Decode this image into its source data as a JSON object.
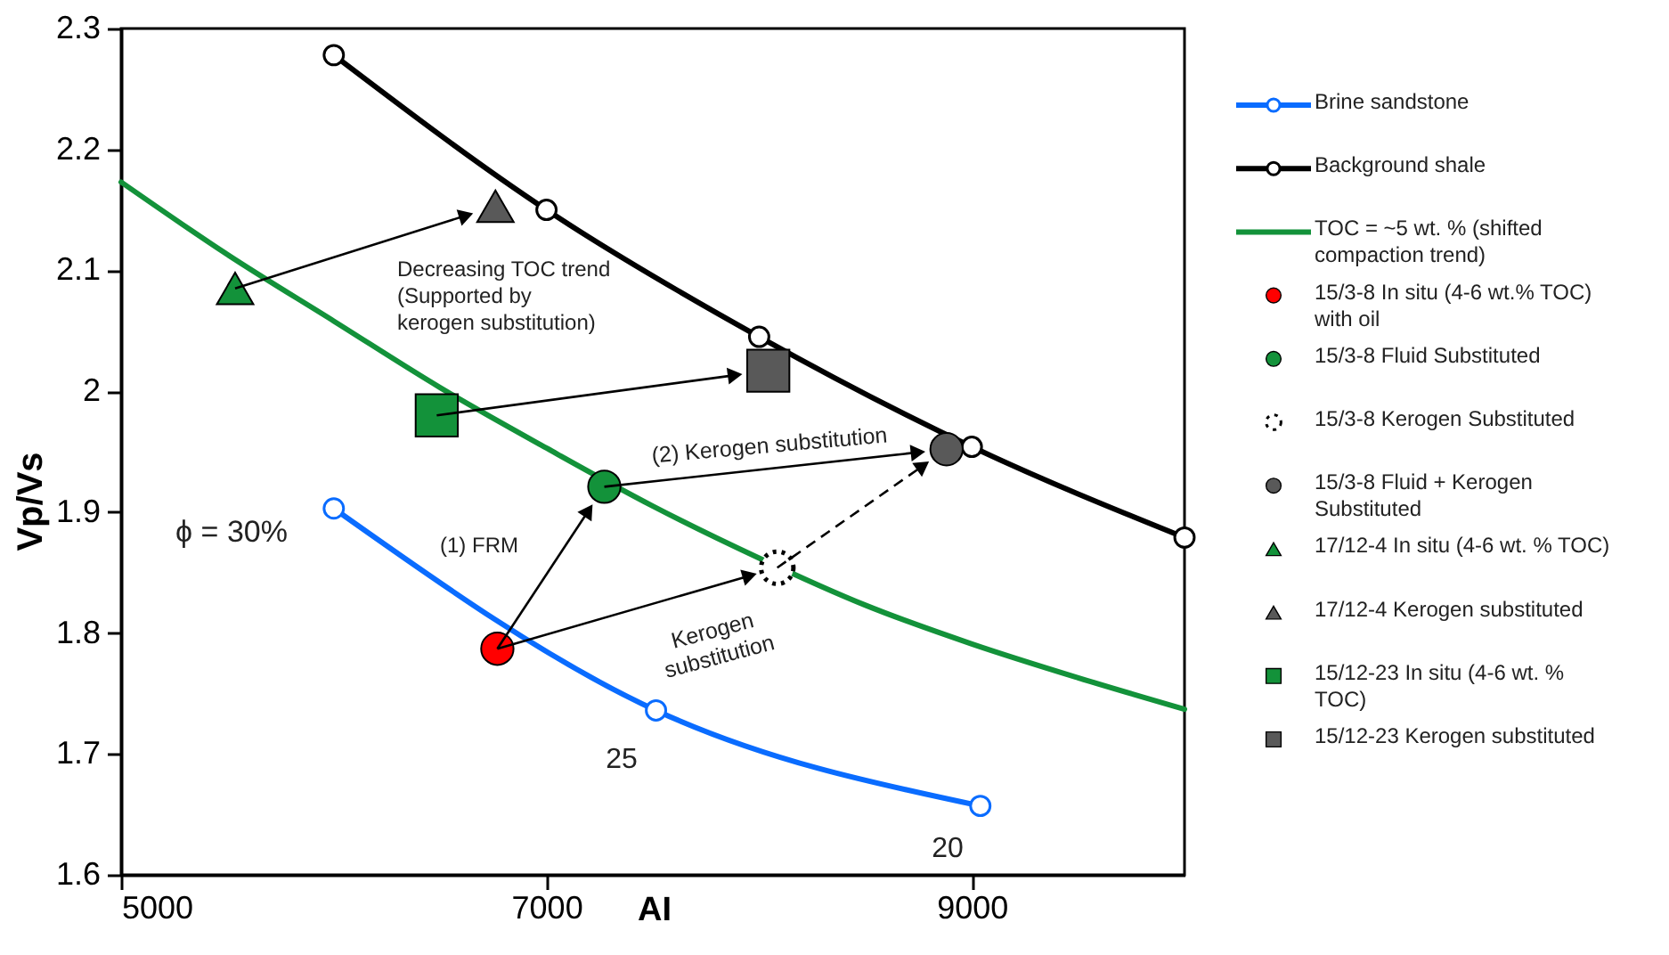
{
  "chart_data": {
    "type": "scatter",
    "xlabel": "AI",
    "ylabel": "Vp/Vs",
    "xlim": [
      5000,
      10000
    ],
    "xticks": [
      5000,
      7000,
      9000
    ],
    "ylim": [
      1.6,
      2.3
    ],
    "yticks": [
      1.6,
      1.7,
      1.8,
      1.9,
      2.0,
      2.1,
      2.2,
      2.3
    ],
    "grid": false,
    "legend": "right",
    "series": [
      {
        "name": "Brine sandstone",
        "type": "line",
        "marker": "circle",
        "color": "#0a6cff",
        "x": [
          6000,
          7515,
          9040
        ],
        "values": [
          1.903,
          1.736,
          1.657
        ]
      },
      {
        "name": "Background shale",
        "type": "line",
        "marker": "circle",
        "color": "#000000",
        "x": [
          6000,
          7000,
          8000,
          9000,
          10000
        ],
        "values": [
          2.278,
          2.15,
          2.045,
          1.954,
          1.879
        ]
      },
      {
        "name": "TOC = ~5 wt. % (shifted compaction trend)",
        "type": "line",
        "marker": "none",
        "color": "#13923a",
        "x": [
          5000,
          5500,
          6000,
          6500,
          7000,
          7500,
          8000,
          8500,
          9000,
          9500,
          10000
        ],
        "values": [
          2.173,
          2.113,
          2.058,
          2.003,
          1.953,
          1.905,
          1.862,
          1.823,
          1.791,
          1.763,
          1.737
        ]
      },
      {
        "name": "15/3-8 In situ (4-6 wt.% TOC) with oil",
        "marker": "circle",
        "color": "#ff0000",
        "x": [
          6769
        ],
        "values": [
          1.787
        ]
      },
      {
        "name": "15/3-8 Fluid Substituted",
        "marker": "circle",
        "color": "#13923a",
        "x": [
          7272
        ],
        "values": [
          1.921
        ]
      },
      {
        "name": "15/3-8 Kerogen Substituted",
        "marker": "circle",
        "color": "#ffffff",
        "line_style": "dotted",
        "x": [
          8085
        ],
        "values": [
          1.854
        ]
      },
      {
        "name": "15/3-8 Fluid + Kerogen Substituted",
        "marker": "circle",
        "color": "#595959",
        "x": [
          8881
        ],
        "values": [
          1.952
        ]
      },
      {
        "name": "17/12-4 In situ (4-6 wt. % TOC)",
        "marker": "triangle",
        "color": "#13923a",
        "x": [
          5536
        ],
        "values": [
          2.085
        ]
      },
      {
        "name": "17/12-4 Kerogen substituted",
        "marker": "triangle",
        "color": "#595959",
        "x": [
          6760
        ],
        "values": [
          2.153
        ]
      },
      {
        "name": "15/12-23 In situ (4-6 wt. % TOC)",
        "marker": "square",
        "color": "#13923a",
        "x": [
          6484
        ],
        "values": [
          1.98
        ]
      },
      {
        "name": "15/12-23 Kerogen substituted",
        "marker": "square",
        "color": "#595959",
        "x": [
          8043
        ],
        "values": [
          2.017
        ]
      }
    ],
    "annotations": [
      "ϕ = 30%",
      "(1) FRM",
      "Decreasing TOC trend\n(Supported by\nkerogen substitution)",
      "(2) Kerogen substitution",
      "Kerogen\nsubstitution",
      "25",
      "20"
    ]
  }
}
